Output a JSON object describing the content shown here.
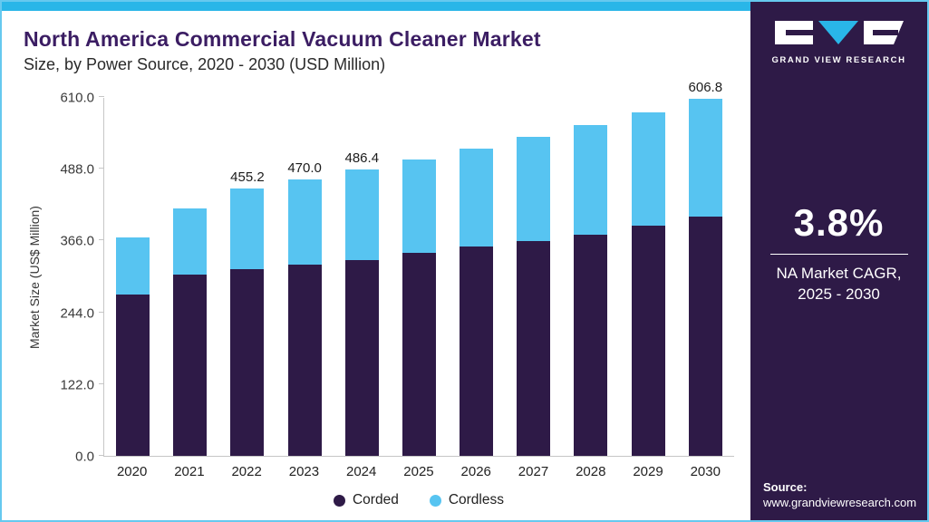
{
  "header": {
    "title_line1": "North America Commercial Vacuum Cleaner Market",
    "title_line2": "Size, by Power Source, 2020 - 2030 (USD Million)"
  },
  "sidebar": {
    "brand": "GRAND VIEW RESEARCH",
    "cagr_value": "3.8%",
    "cagr_label_line1": "NA Market CAGR,",
    "cagr_label_line2": "2025 - 2030",
    "source_label": "Source:",
    "source_url": "www.grandviewresearch.com"
  },
  "colors": {
    "accent_cyan": "#29b6e8",
    "sidebar_bg": "#2e1a47",
    "title_purple": "#3b1d63",
    "corded": "#2e1a47",
    "cordless": "#57c4f1"
  },
  "chart_data": {
    "type": "bar",
    "stacked": true,
    "title": "North America Commercial Vacuum Cleaner Market Size, by Power Source, 2020 - 2030 (USD Million)",
    "xlabel": "",
    "ylabel": "Market Size (US$ Million)",
    "ylim": [
      0,
      610
    ],
    "yticks": [
      0,
      122,
      244,
      366,
      488,
      610
    ],
    "grid": false,
    "legend_position": "bottom",
    "categories": [
      "2020",
      "2021",
      "2022",
      "2023",
      "2024",
      "2025",
      "2026",
      "2027",
      "2028",
      "2029",
      "2030"
    ],
    "series": [
      {
        "name": "Corded",
        "color": "#2e1a47",
        "values": [
          275,
          308,
          317,
          325,
          333,
          345,
          356,
          365,
          376,
          391,
          407
        ]
      },
      {
        "name": "Cordless",
        "color": "#57c4f1",
        "values": [
          97,
          112,
          138.2,
          145,
          153.4,
          159,
          167,
          177,
          186,
          193,
          199.8
        ]
      }
    ],
    "totals": [
      372,
      420,
      455.2,
      470.0,
      486.4,
      504,
      523,
      542,
      562,
      584,
      606.8
    ],
    "value_labels": {
      "2022": "455.2",
      "2023": "470.0",
      "2024": "486.4",
      "2030": "606.8"
    }
  }
}
